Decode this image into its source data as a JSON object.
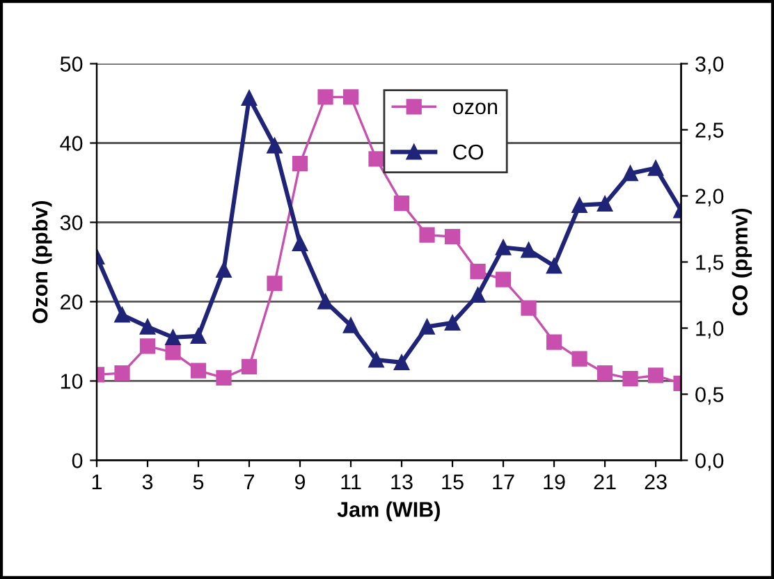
{
  "chart_data": {
    "type": "line",
    "xlabel": "Jam (WIB)",
    "ylabel": "Ozon (ppbv)",
    "y2label": "CO (ppmv)",
    "x": [
      1,
      2,
      3,
      4,
      5,
      6,
      7,
      8,
      9,
      10,
      11,
      12,
      13,
      14,
      15,
      16,
      17,
      18,
      19,
      20,
      21,
      22,
      23,
      24
    ],
    "series": [
      {
        "name": "ozon",
        "color": "#c94fae",
        "marker": "square",
        "values": [
          10.8,
          11,
          14.4,
          13.6,
          11.3,
          10.4,
          11.8,
          22.3,
          37.4,
          45.8,
          45.8,
          38,
          32.4,
          28.4,
          28.2,
          23.8,
          22.8,
          19.2,
          14.9,
          12.8,
          11,
          10.3,
          10.7,
          9.7
        ]
      },
      {
        "name": "CO",
        "color": "#1f2478",
        "marker": "triangle",
        "axis": "y2",
        "values": [
          1.54,
          1.1,
          1.01,
          0.93,
          0.94,
          1.44,
          2.74,
          2.38,
          1.64,
          1.2,
          1.02,
          0.76,
          0.74,
          1.01,
          1.04,
          1.25,
          1.61,
          1.59,
          1.47,
          1.93,
          1.94,
          2.17,
          2.21,
          1.89
        ]
      }
    ],
    "xlim": [
      1,
      24
    ],
    "xticks": [
      1,
      3,
      5,
      7,
      9,
      11,
      13,
      15,
      17,
      19,
      21,
      23
    ],
    "ylim": [
      0,
      50
    ],
    "yticks": [
      0,
      10,
      20,
      30,
      40,
      50
    ],
    "y2lim": [
      0,
      3
    ],
    "y2ticks": [
      {
        "value": 0,
        "label": "0,0"
      },
      {
        "value": 0.5,
        "label": "0,5"
      },
      {
        "value": 1,
        "label": "1,0"
      },
      {
        "value": 1.5,
        "label": "1,5"
      },
      {
        "value": 2,
        "label": "2,0"
      },
      {
        "value": 2.5,
        "label": "2,5"
      },
      {
        "value": 3,
        "label": "3,0"
      }
    ],
    "grid": "y",
    "legend": "top right",
    "line_style": "solid"
  }
}
